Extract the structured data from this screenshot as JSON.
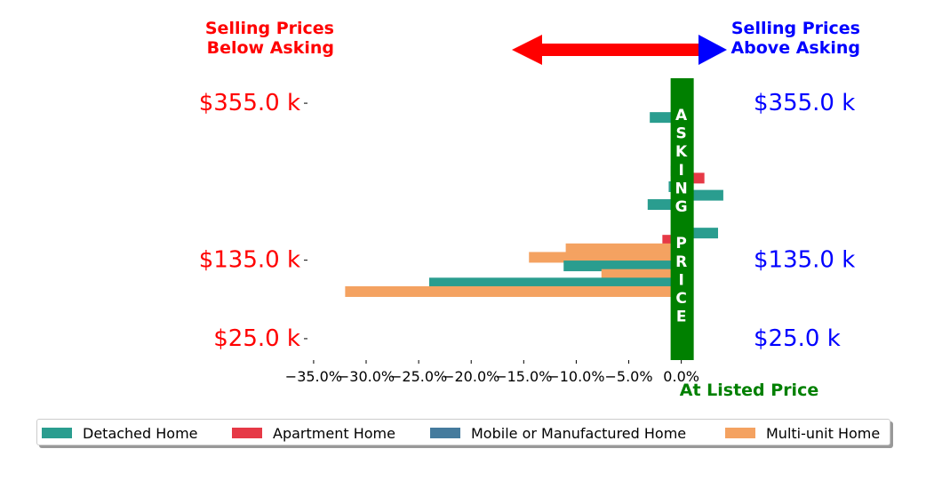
{
  "header": {
    "below_line1": "Selling Prices",
    "below_line2": "Below Asking",
    "above_line1": "Selling Prices",
    "above_line2": "Above Asking",
    "below_color": "#ff0000",
    "above_color": "#0000ff"
  },
  "asking_label": "ASKING PRICE",
  "asking_color": "#008000",
  "xaxis_label": "At Listed Price",
  "colors": {
    "Detached Home": "#2a9d8f",
    "Apartment Home": "#e63946",
    "Mobile or Manufactured Home": "#457b9d",
    "Multi-unit Home": "#f4a261",
    "left_tick_color": "#ff0000",
    "right_tick_color": "#0000ff"
  },
  "legend": [
    {
      "label": "Detached Home",
      "color": "#2a9d8f"
    },
    {
      "label": "Apartment Home",
      "color": "#e63946"
    },
    {
      "label": "Mobile or Manufactured Home",
      "color": "#457b9d"
    },
    {
      "label": "Multi-unit Home",
      "color": "#f4a261"
    }
  ],
  "chart_data": {
    "type": "bar",
    "orientation": "horizontal",
    "xlabel": "At Listed Price",
    "x_unit": "percent difference from asking price",
    "xlim": [
      -35.5,
      1.3
    ],
    "x_ticks": [
      "−35.0%",
      "−30.0%",
      "−25.0%",
      "−20.0%",
      "−15.0%",
      "−10.0%",
      "−5.0%",
      "0.0%"
    ],
    "y_tick_labels": [
      "$355.0 k",
      "$135.0 k",
      "$25.0 k"
    ],
    "y_tick_positions": [
      355,
      135,
      25
    ],
    "ylim": [
      -5,
      390
    ],
    "bars": [
      {
        "y": 335,
        "value": -3.0,
        "series": "Detached Home"
      },
      {
        "y": 260,
        "value": -1.0,
        "series": "Detached Home"
      },
      {
        "y": 250,
        "value": 2.2,
        "series": "Apartment Home"
      },
      {
        "y": 238,
        "value": -1.2,
        "series": "Detached Home"
      },
      {
        "y": 226,
        "value": 4.0,
        "series": "Detached Home"
      },
      {
        "y": 213,
        "value": -3.2,
        "series": "Detached Home"
      },
      {
        "y": 173,
        "value": 3.5,
        "series": "Detached Home"
      },
      {
        "y": 163,
        "value": -1.8,
        "series": "Apartment Home"
      },
      {
        "y": 151,
        "value": -11.0,
        "series": "Multi-unit Home"
      },
      {
        "y": 139,
        "value": -14.5,
        "series": "Multi-unit Home"
      },
      {
        "y": 127,
        "value": -11.2,
        "series": "Detached Home"
      },
      {
        "y": 115,
        "value": -7.6,
        "series": "Multi-unit Home"
      },
      {
        "y": 103,
        "value": -24.0,
        "series": "Detached Home"
      },
      {
        "y": 91,
        "value": -32.0,
        "series": "Multi-unit Home"
      }
    ]
  }
}
